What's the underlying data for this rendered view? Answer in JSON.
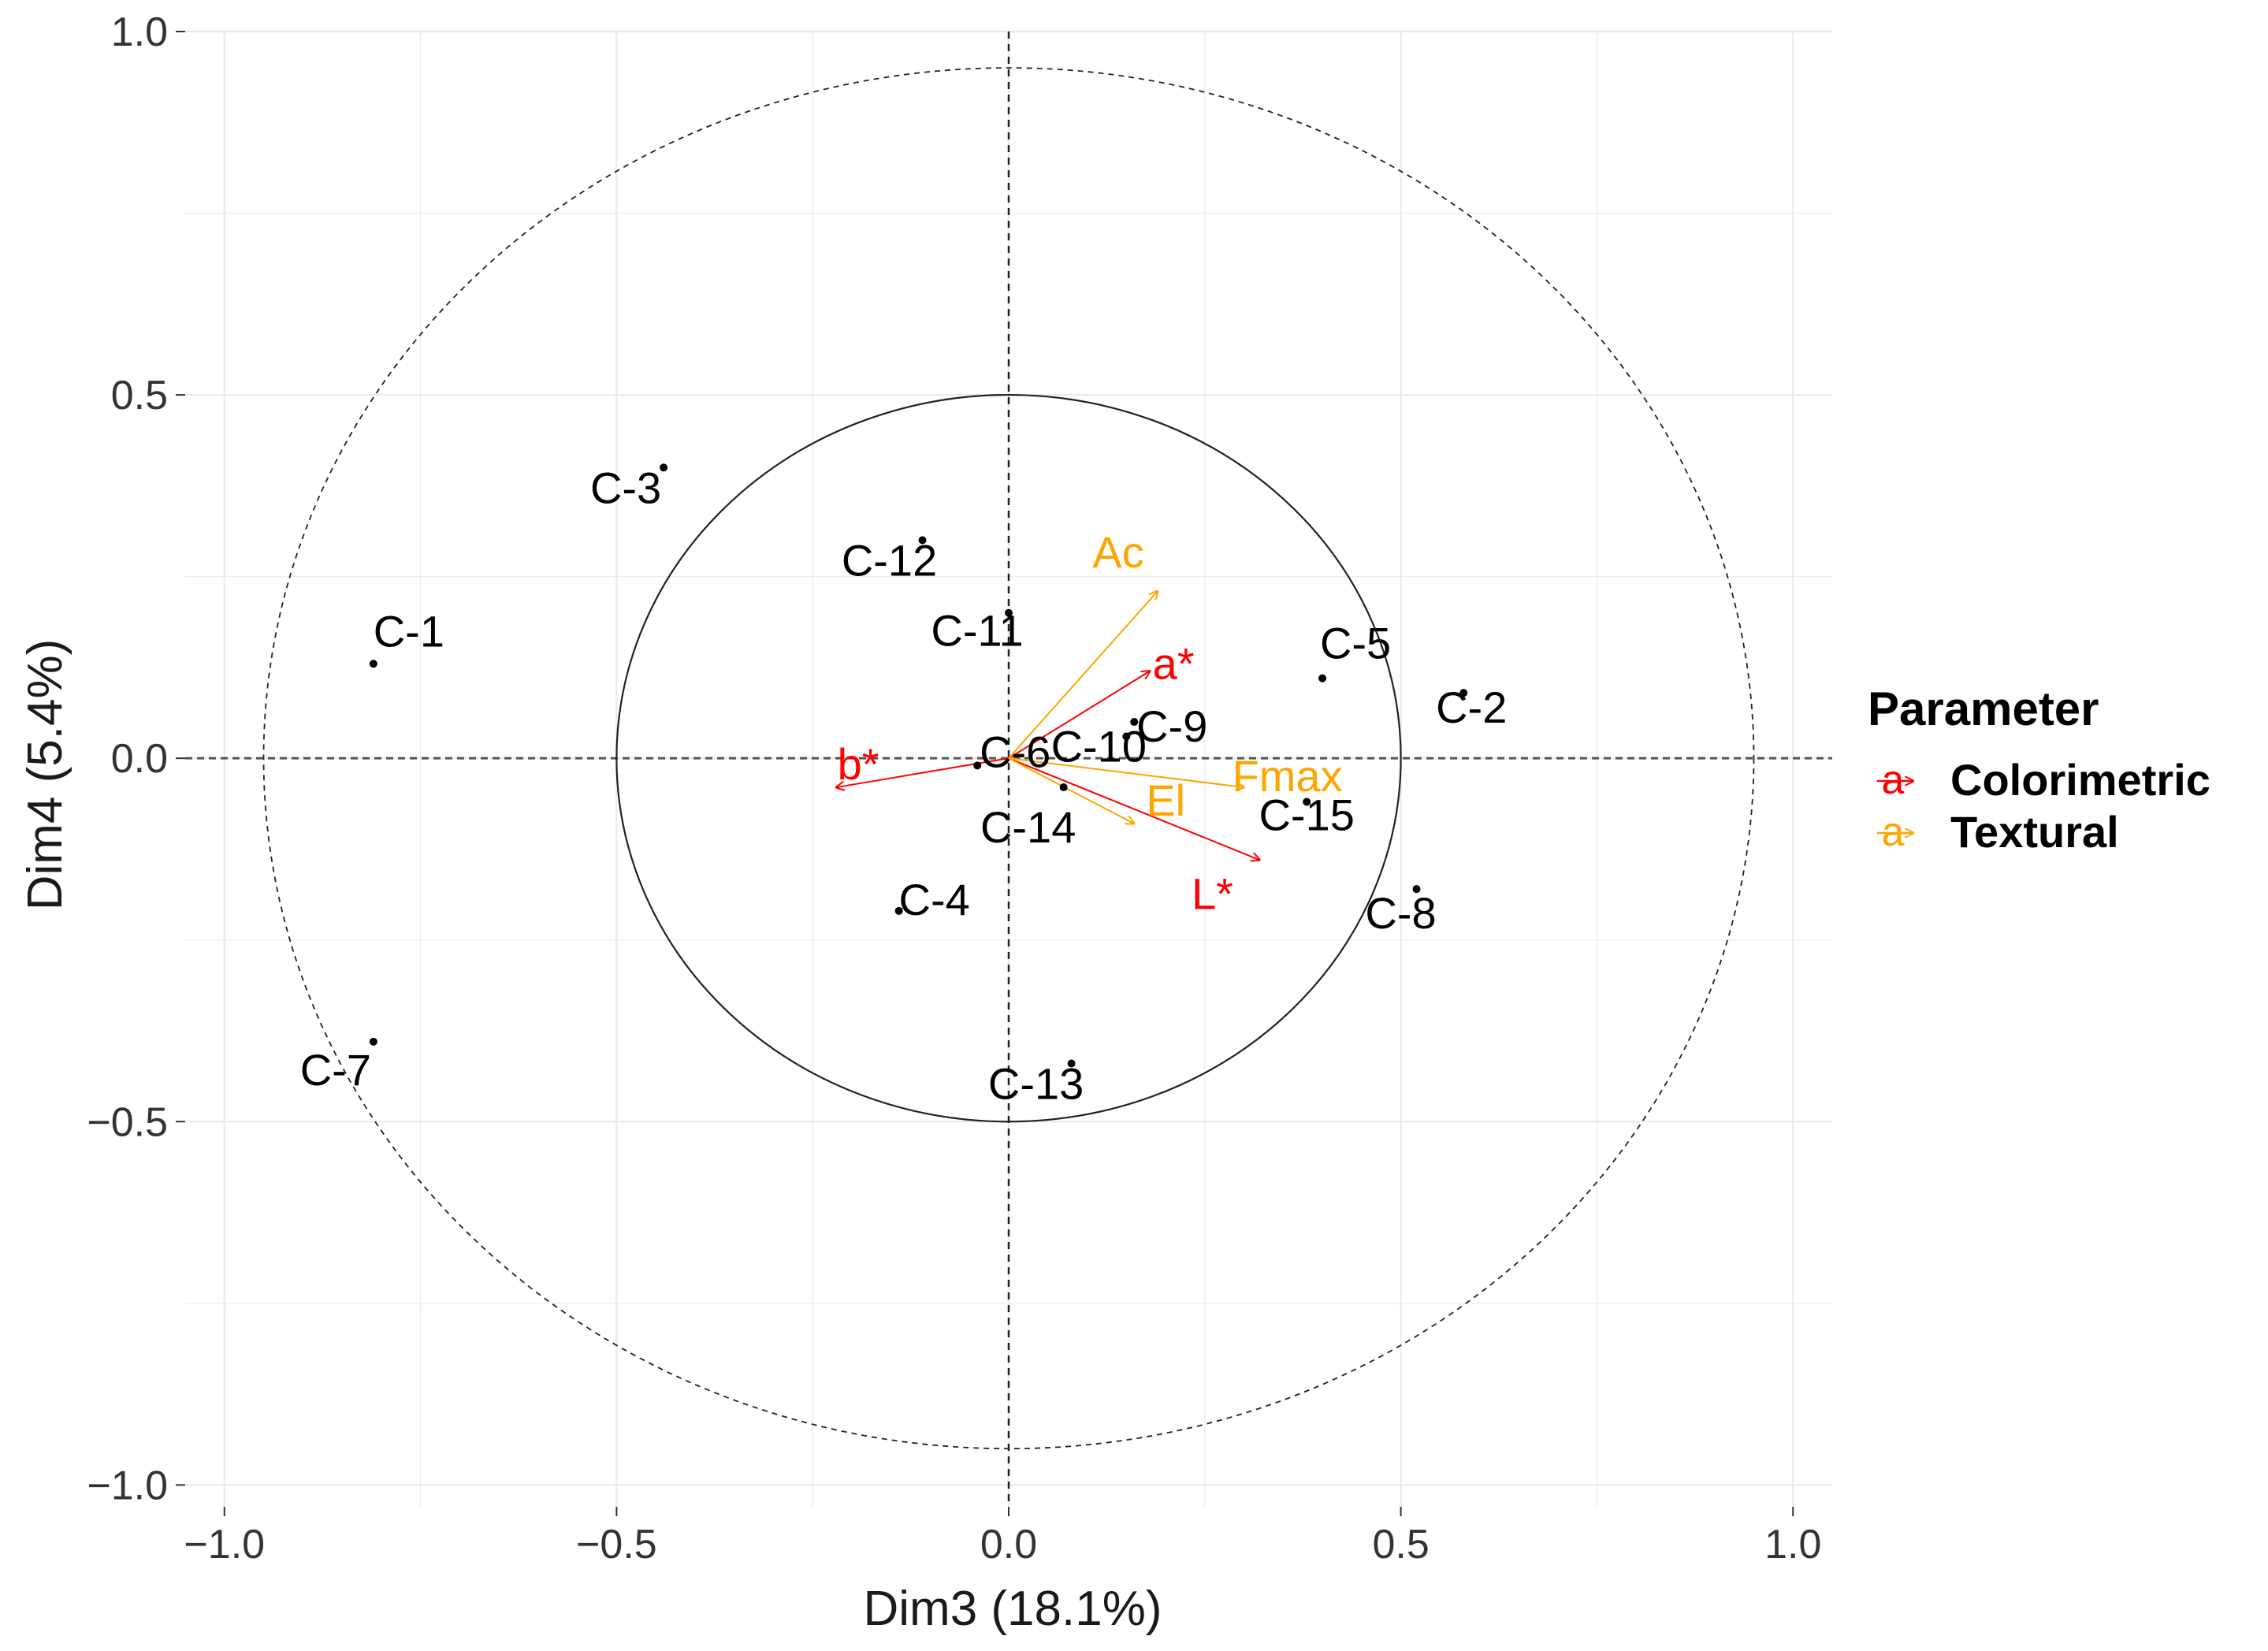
{
  "chart_data": {
    "type": "scatter",
    "title": "",
    "xlabel": "Dim3 (18.1%)",
    "ylabel": "Dim4 (5.4%)",
    "xlim": [
      -1.05,
      1.05
    ],
    "ylim": [
      -1.03,
      1.0
    ],
    "xticks": [
      -1.0,
      -0.5,
      0.0,
      0.5,
      1.0
    ],
    "xtick_labels": [
      "−1.0",
      "−0.5",
      "0.0",
      "0.5",
      "1.0"
    ],
    "yticks": [
      -1.0,
      -0.5,
      0.0,
      0.5,
      1.0
    ],
    "ytick_labels": [
      "−1.0",
      "−0.5",
      "0.0",
      "0.5",
      "1.0"
    ],
    "grid": true,
    "reference_lines": {
      "x": 0,
      "y": 0,
      "style": "dashed"
    },
    "circles": [
      {
        "radius": 0.5,
        "style": "solid"
      },
      {
        "radius": 0.95,
        "style": "dashed"
      }
    ],
    "points": [
      {
        "label": "C-1",
        "x": -0.81,
        "y": 0.13
      },
      {
        "label": "C-2",
        "x": 0.58,
        "y": 0.09
      },
      {
        "label": "C-3",
        "x": -0.44,
        "y": 0.4
      },
      {
        "label": "C-4",
        "x": -0.14,
        "y": -0.21
      },
      {
        "label": "C-5",
        "x": 0.4,
        "y": 0.11
      },
      {
        "label": "C-6",
        "x": -0.04,
        "y": -0.01
      },
      {
        "label": "C-7",
        "x": -0.81,
        "y": -0.39
      },
      {
        "label": "C-8",
        "x": 0.52,
        "y": -0.18
      },
      {
        "label": "C-9",
        "x": 0.16,
        "y": 0.05
      },
      {
        "label": "C-10",
        "x": 0.15,
        "y": 0.03
      },
      {
        "label": "C-11",
        "x": 0.0,
        "y": 0.2
      },
      {
        "label": "C-12",
        "x": -0.11,
        "y": 0.3
      },
      {
        "label": "C-13",
        "x": 0.08,
        "y": -0.42
      },
      {
        "label": "C-14",
        "x": 0.07,
        "y": -0.04
      },
      {
        "label": "C-15",
        "x": 0.38,
        "y": -0.06
      }
    ],
    "vectors": [
      {
        "label": "a*",
        "group": "Colorimetric",
        "x": 0.18,
        "y": 0.12
      },
      {
        "label": "b*",
        "group": "Colorimetric",
        "x": -0.22,
        "y": -0.04
      },
      {
        "label": "L*",
        "group": "Colorimetric",
        "x": 0.32,
        "y": -0.14
      },
      {
        "label": "Ac",
        "group": "Textural",
        "x": 0.19,
        "y": 0.23
      },
      {
        "label": "Fmax",
        "group": "Textural",
        "x": 0.3,
        "y": -0.04
      },
      {
        "label": "El",
        "group": "Textural",
        "x": 0.16,
        "y": -0.09
      }
    ],
    "legend": {
      "title": "Parameter",
      "position": "right",
      "items": [
        {
          "label": "Colorimetric",
          "color": "#ff0000"
        },
        {
          "label": "Textural",
          "color": "#ffa500"
        }
      ],
      "key_glyph": "a"
    },
    "colors": {
      "Colorimetric": "#ff0000",
      "Textural": "#ffa500",
      "points": "#000000",
      "grid": "#ebebeb"
    }
  }
}
